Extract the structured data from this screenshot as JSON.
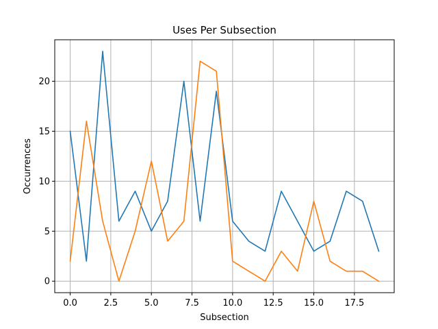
{
  "chart_data": {
    "type": "line",
    "title": "Uses Per Subsection",
    "xlabel": "Subsection",
    "ylabel": "Occurrences",
    "xlim": [
      -0.95,
      19.95
    ],
    "ylim": [
      -1.15,
      24.15
    ],
    "x": [
      0,
      1,
      2,
      3,
      4,
      5,
      6,
      7,
      8,
      9,
      10,
      11,
      12,
      13,
      14,
      15,
      16,
      17,
      18,
      19
    ],
    "x_ticks": [
      0,
      2.5,
      5,
      7.5,
      10,
      12.5,
      15,
      17.5
    ],
    "x_tick_labels": [
      "0.0",
      "2.5",
      "5.0",
      "7.5",
      "10.0",
      "12.5",
      "15.0",
      "17.5"
    ],
    "y_ticks": [
      0,
      5,
      10,
      15,
      20
    ],
    "y_tick_labels": [
      "0",
      "5",
      "10",
      "15",
      "20"
    ],
    "grid": true,
    "series": [
      {
        "color": "#1f77b4",
        "values": [
          15,
          2,
          23,
          6,
          9,
          5,
          8,
          20,
          6,
          19,
          6,
          4,
          3,
          9,
          6,
          3,
          4,
          9,
          8,
          3
        ]
      },
      {
        "color": "#ff7f0e",
        "values": [
          2,
          16,
          6,
          0,
          5,
          12,
          4,
          6,
          22,
          21,
          2,
          1,
          0,
          3,
          1,
          8,
          2,
          1,
          1,
          0
        ]
      }
    ]
  }
}
